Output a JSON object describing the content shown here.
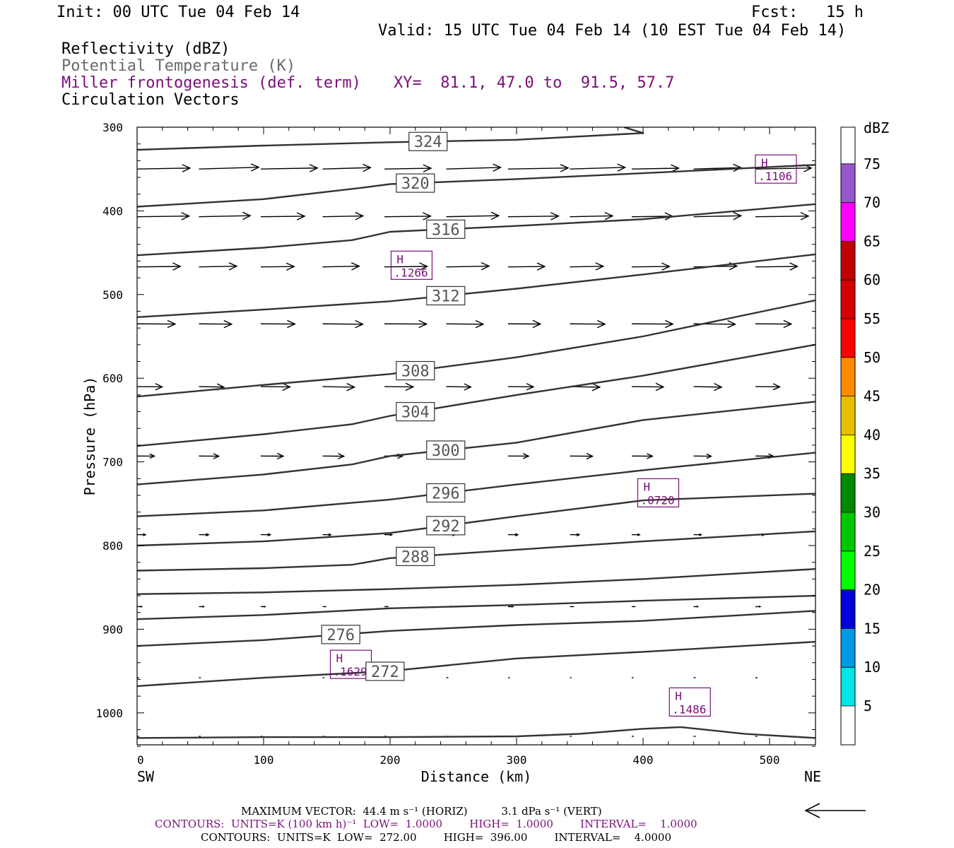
{
  "header": {
    "init": "Init: 00 UTC Tue 04 Feb 14",
    "fcst": "Fcst:   15 h",
    "valid": "Valid: 15 UTC Tue 04 Feb 14 (10 EST Tue 04 Feb 14)",
    "field1": "Reflectivity (dBZ)",
    "field2": "Potential Temperature (K)",
    "field3": "Miller frontogenesis (def. term)",
    "xy": "XY=  81.1, 47.0 to  91.5, 57.7",
    "field4": "Circulation Vectors"
  },
  "colors": {
    "contour": "#333333",
    "frontogenesis": "#7a0f7a",
    "potential_temp_label": "#6a6a6a"
  },
  "colorbar": {
    "unit": "dBZ",
    "levels": [
      "5",
      "10",
      "15",
      "20",
      "25",
      "30",
      "35",
      "40",
      "45",
      "50",
      "55",
      "60",
      "65",
      "70",
      "75"
    ],
    "colors": [
      "#00e5e5",
      "#0099e6",
      "#0000dd",
      "#00ff00",
      "#00c800",
      "#008800",
      "#ffff00",
      "#e6bf00",
      "#ff8c00",
      "#ff0000",
      "#d40000",
      "#c00000",
      "#ff00ff",
      "#9955cc",
      "#ffffff"
    ]
  },
  "chart_data": {
    "type": "contour-cross-section",
    "xlabel": "Distance (km)",
    "ylabel": "Pressure (hPa)",
    "xlim": [
      0,
      536
    ],
    "ylim": [
      300,
      1040
    ],
    "y_inverted": true,
    "x_ticks": [
      "0",
      "100",
      "200",
      "300",
      "400",
      "500"
    ],
    "y_ticks": [
      "300",
      "400",
      "500",
      "600",
      "700",
      "800",
      "900",
      "1000"
    ],
    "left_endpoint": "SW",
    "right_endpoint": "NE",
    "isentropes": [
      {
        "theta": 324,
        "label": "324",
        "x": [
          0,
          100,
          200,
          300,
          400,
          385
        ],
        "p": [
          327,
          322,
          318,
          315,
          307,
          300
        ]
      },
      {
        "theta": 320,
        "label": "320",
        "x": [
          0,
          100,
          180,
          200,
          300,
          400,
          536
        ],
        "p": [
          395,
          386,
          372,
          368,
          362,
          355,
          345
        ]
      },
      {
        "theta": 316,
        "label": "316",
        "x": [
          0,
          100,
          170,
          200,
          300,
          400,
          536
        ],
        "p": [
          453,
          444,
          435,
          425,
          418,
          410,
          392
        ]
      },
      {
        "theta": 312,
        "label": "312",
        "x": [
          0,
          100,
          200,
          300,
          400,
          536
        ],
        "p": [
          527,
          518,
          508,
          493,
          476,
          452
        ]
      },
      {
        "theta": 308,
        "label": "308",
        "x": [
          0,
          100,
          200,
          300,
          400,
          536
        ],
        "p": [
          622,
          608,
          595,
          575,
          550,
          507
        ]
      },
      {
        "theta": 304,
        "label": "304",
        "x": [
          0,
          100,
          170,
          200,
          300,
          400,
          536
        ],
        "p": [
          681,
          667,
          655,
          645,
          620,
          597,
          560
        ]
      },
      {
        "theta": 300,
        "label": "300",
        "x": [
          0,
          100,
          170,
          200,
          300,
          400,
          536
        ],
        "p": [
          727,
          715,
          703,
          693,
          677,
          650,
          628
        ]
      },
      {
        "theta": 296,
        "label": "296",
        "x": [
          0,
          100,
          200,
          300,
          400,
          536
        ],
        "p": [
          765,
          758,
          745,
          727,
          710,
          689
        ]
      },
      {
        "theta": 292,
        "label": "292",
        "x": [
          0,
          100,
          200,
          300,
          400,
          536
        ],
        "p": [
          800,
          795,
          785,
          765,
          746,
          738
        ]
      },
      {
        "theta": 288,
        "label": "288",
        "x": [
          0,
          100,
          170,
          200,
          300,
          400,
          536
        ],
        "p": [
          830,
          827,
          823,
          815,
          805,
          795,
          783
        ]
      },
      {
        "theta": 284,
        "label": "",
        "x": [
          0,
          100,
          200,
          300,
          400,
          536
        ],
        "p": [
          858,
          856,
          852,
          847,
          840,
          828
        ]
      },
      {
        "theta": 280,
        "label": "",
        "x": [
          0,
          100,
          200,
          300,
          400,
          536
        ],
        "p": [
          888,
          883,
          875,
          871,
          866,
          860
        ]
      },
      {
        "theta": 276,
        "label": "276",
        "x": [
          0,
          100,
          200,
          300,
          400,
          536
        ],
        "p": [
          920,
          913,
          902,
          895,
          890,
          878
        ]
      },
      {
        "theta": 272,
        "label": "272",
        "x": [
          0,
          20,
          100,
          200,
          300,
          400,
          536
        ],
        "p": [
          968,
          966,
          958,
          950,
          935,
          927,
          915
        ]
      },
      {
        "theta": 268,
        "label": "",
        "x": [
          0,
          100,
          200,
          300,
          350,
          400,
          430,
          480,
          536
        ],
        "p": [
          1030,
          1029,
          1029,
          1028,
          1025,
          1019,
          1017,
          1025,
          1030
        ]
      }
    ],
    "frontogenesis_maxima": [
      {
        "label": "H",
        "value": ".1106",
        "x": 505,
        "p": 350
      },
      {
        "label": "H",
        "value": ".1266",
        "x": 217,
        "p": 465
      },
      {
        "label": "H",
        "value": ".0720",
        "x": 412,
        "p": 737
      },
      {
        "label": "H",
        "value": ".1629",
        "x": 169,
        "p": 942
      },
      {
        "label": "H",
        "value": ".1486",
        "x": 437,
        "p": 987
      }
    ],
    "circulation_vector_levels_hpa": [
      350,
      407,
      467,
      535,
      610,
      693,
      787,
      873,
      958,
      1028
    ]
  },
  "footer": {
    "max_vector": "MAXIMUM VECTOR:  44.4 m s⁻¹ (HORIZ)          3.1 dPa s⁻¹ (VERT)",
    "contours1": "CONTOURS:  UNITS=K (100 km h)⁻¹  LOW=  1.0000        HIGH=  1.0000        INTERVAL=    1.0000",
    "contours2": "CONTOURS:  UNITS=K  LOW=  272.00        HIGH=  396.00        INTERVAL=    4.0000"
  }
}
